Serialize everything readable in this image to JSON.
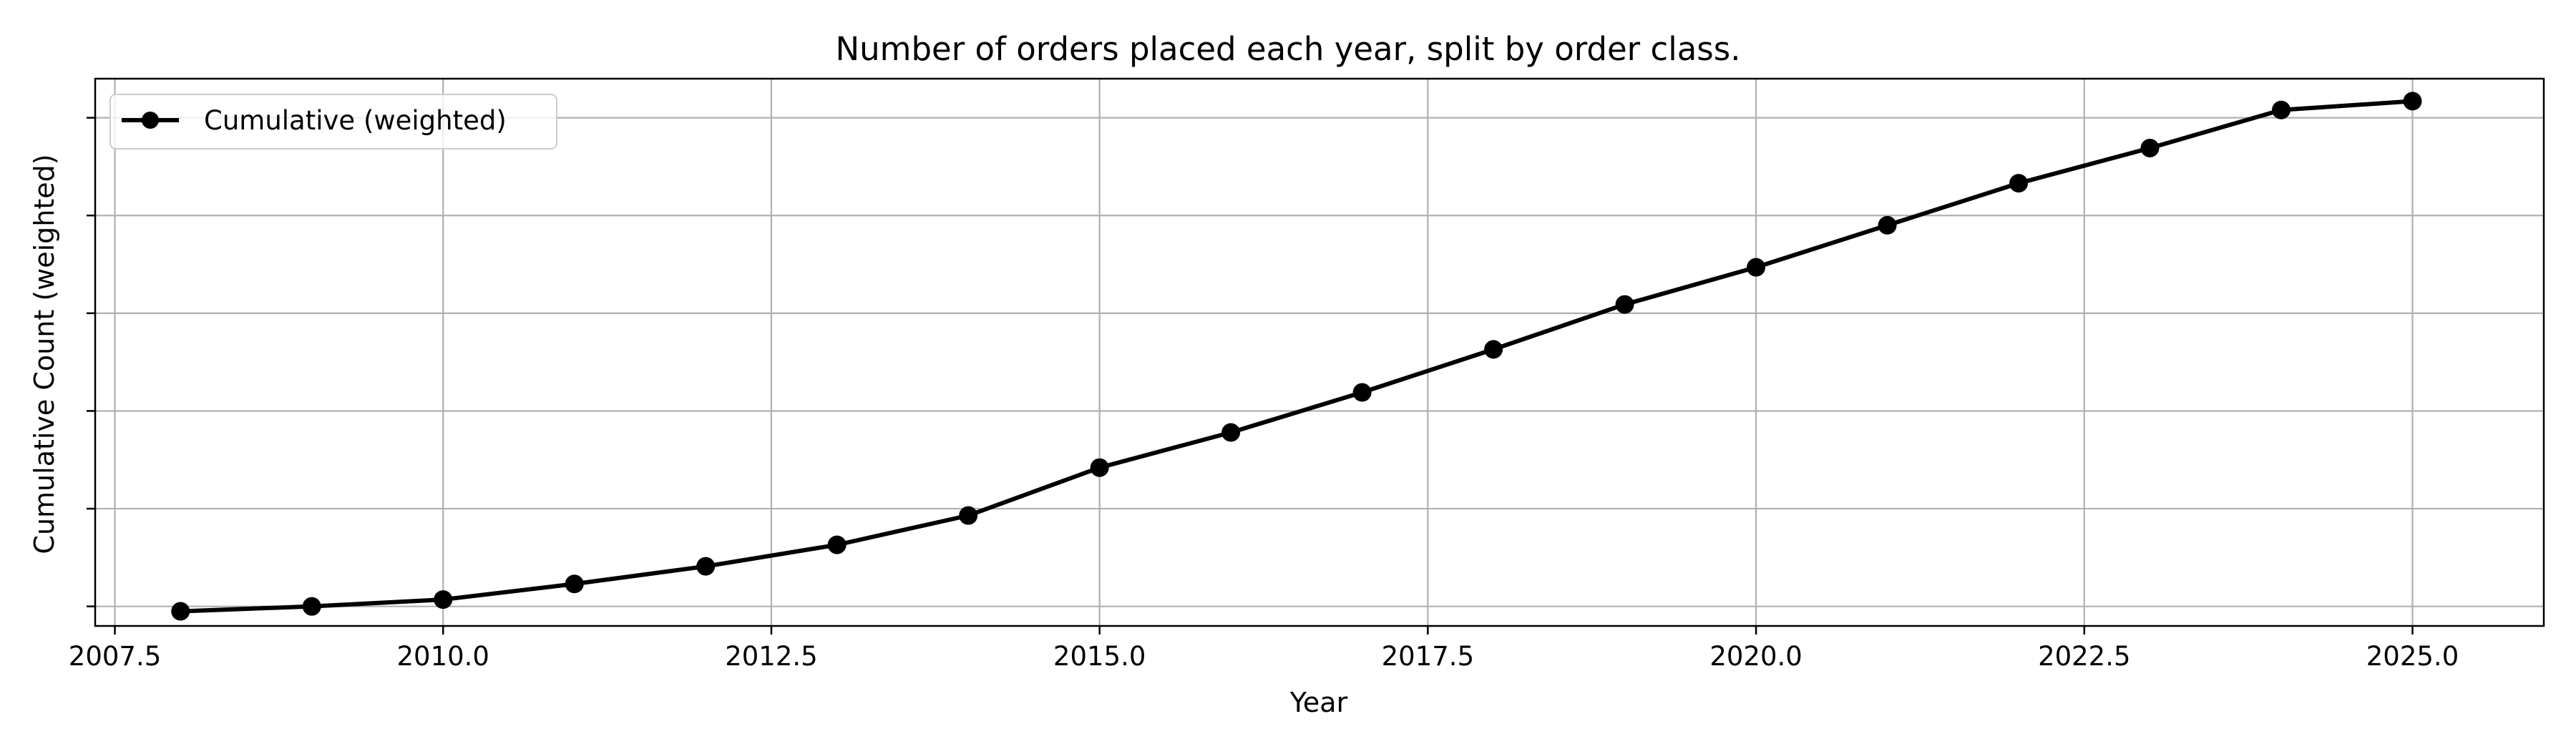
{
  "chart_data": {
    "type": "line",
    "title": "Number of orders placed each year, split by order class.",
    "xlabel": "Year",
    "ylabel": "Cumulative Count (weighted)",
    "xlim": [
      2007.35,
      2026.0
    ],
    "ylim": [
      -0.2,
      5.4
    ],
    "x_ticks": [
      2007.5,
      2010.0,
      2012.5,
      2015.0,
      2017.5,
      2020.0,
      2022.5,
      2025.0
    ],
    "x_tick_labels": [
      "2007.5",
      "2010.0",
      "2012.5",
      "2015.0",
      "2017.5",
      "2020.0",
      "2022.5",
      "2025.0"
    ],
    "y_ticks": [
      0,
      1,
      2,
      3,
      4,
      5
    ],
    "y_tick_labels_shown": false,
    "grid": true,
    "legend_position": "upper-left",
    "series": [
      {
        "name": "Cumulative (weighted)",
        "color": "#000000",
        "marker": "circle",
        "x": [
          2008,
          2009,
          2010,
          2011,
          2012,
          2013,
          2014,
          2015,
          2016,
          2017,
          2018,
          2019,
          2020,
          2021,
          2022,
          2023,
          2024,
          2025
        ],
        "y": [
          -0.05,
          0.0,
          0.07,
          0.23,
          0.41,
          0.63,
          0.93,
          1.42,
          1.78,
          2.19,
          2.63,
          3.09,
          3.47,
          3.9,
          4.33,
          4.69,
          5.08,
          5.17
        ]
      }
    ]
  }
}
